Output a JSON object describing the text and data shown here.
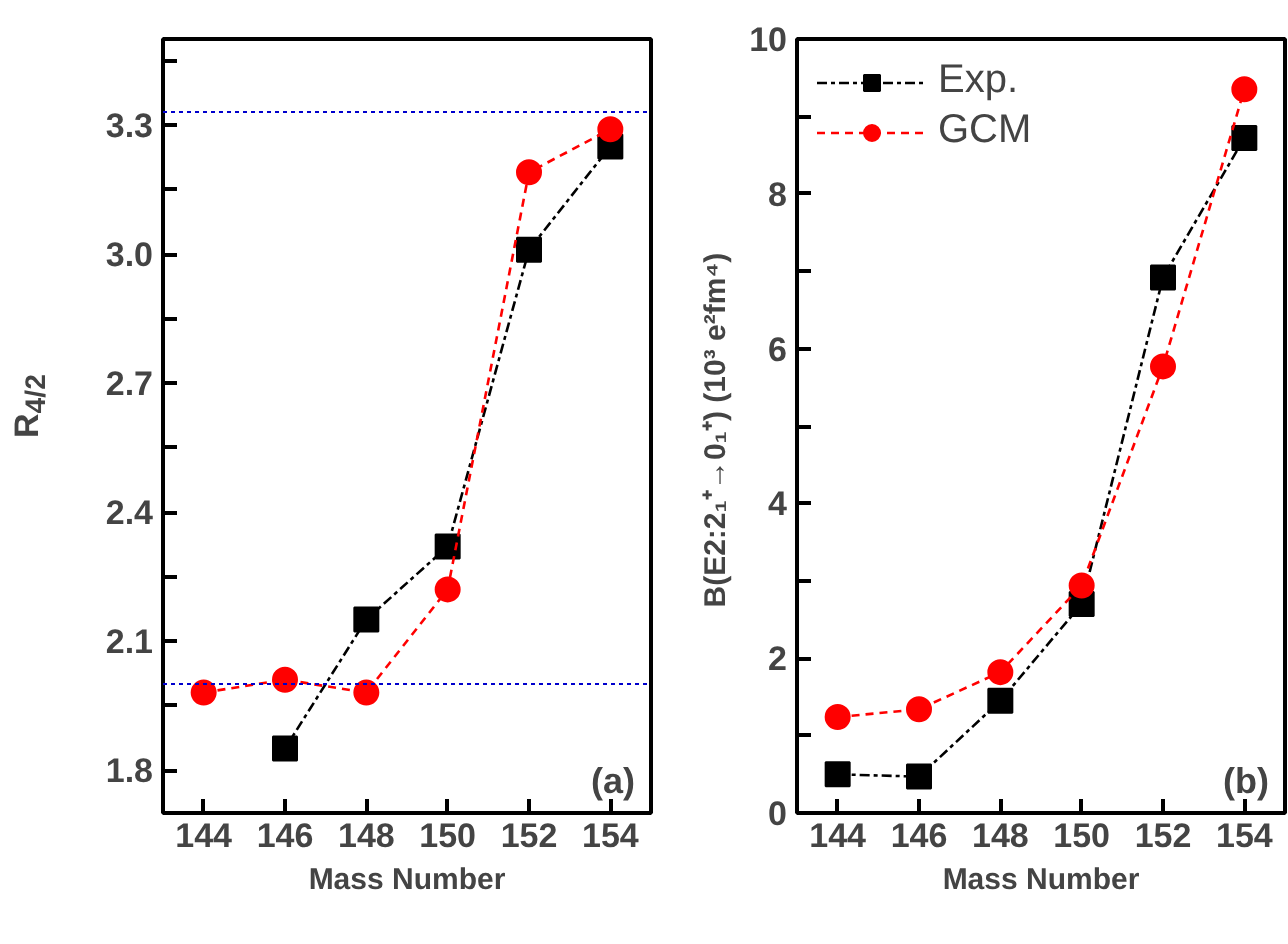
{
  "chart_data": [
    {
      "type": "line",
      "xlabel": "Mass Number",
      "ylabel": "R$_{4/2}$",
      "x": [
        144,
        146,
        148,
        150,
        152,
        154
      ],
      "series": [
        {
          "color": "#000000",
          "marker": "square",
          "line_style": "dashdot",
          "values": [
            null,
            1.85,
            2.15,
            2.32,
            3.01,
            3.25
          ]
        },
        {
          "color": "#ff0000",
          "marker": "circle",
          "line_style": "dashed",
          "values": [
            1.98,
            2.01,
            1.98,
            2.22,
            3.19,
            3.29
          ]
        }
      ],
      "xlim": [
        143,
        155
      ],
      "xticks": [
        144,
        146,
        148,
        150,
        152,
        154
      ],
      "ylim": [
        1.7,
        3.5
      ],
      "yticks": [
        1.8,
        {
          "value": 1.95,
          "label": null
        },
        2.1,
        {
          "value": 2.25,
          "label": null
        },
        2.4,
        {
          "value": 2.55,
          "label": null
        },
        2.7,
        {
          "value": 2.85,
          "label": null
        },
        {
          "value": 3.0,
          "label": "3.0"
        },
        {
          "value": 3.15,
          "label": null
        },
        3.3,
        {
          "value": 3.45,
          "label": null
        }
      ],
      "ref_lines": [
        {
          "axis": "y",
          "value": 3.33,
          "color": "#0000cc",
          "line_style": "dotted"
        },
        {
          "axis": "y",
          "value": 2.0,
          "color": "#0000cc",
          "line_style": "dotted"
        }
      ],
      "annotations": [
        "(a)"
      ],
      "legend": false,
      "grid": false
    },
    {
      "type": "line",
      "xlabel": "Mass Number",
      "ylabel": "B(E2:2₁⁺→0₁⁺)  (10³ e²fm⁴)",
      "x": [
        144,
        146,
        148,
        150,
        152,
        154
      ],
      "series": [
        {
          "name": "Exp.",
          "color": "#000000",
          "marker": "square",
          "line_style": "dashdot",
          "values": [
            0.5,
            0.47,
            1.45,
            2.7,
            6.92,
            8.72
          ]
        },
        {
          "name": "GCM",
          "color": "#ff0000",
          "marker": "circle",
          "line_style": "dashed",
          "values": [
            1.24,
            1.34,
            1.82,
            2.94,
            5.77,
            9.35
          ]
        }
      ],
      "xlim": [
        143,
        155
      ],
      "xticks": [
        144,
        146,
        148,
        150,
        152,
        154
      ],
      "ylim": [
        0,
        10
      ],
      "yticks": [
        0,
        {
          "value": 1,
          "label": null
        },
        2,
        {
          "value": 3,
          "label": null
        },
        4,
        {
          "value": 5,
          "label": null
        },
        6,
        {
          "value": 7,
          "label": null
        },
        8,
        {
          "value": 9,
          "label": null
        },
        10
      ],
      "annotations": [
        "(b)"
      ],
      "legend": "top left",
      "grid": false
    }
  ]
}
